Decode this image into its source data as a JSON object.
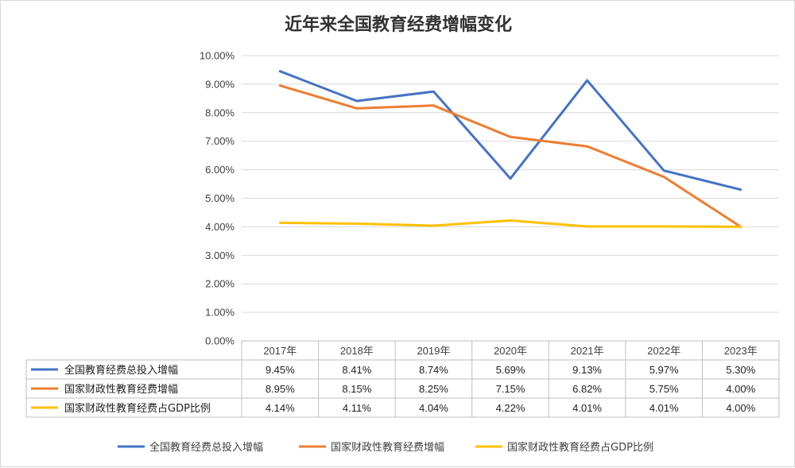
{
  "chart_data": {
    "type": "line",
    "title": "近年来全国教育经费增幅变化",
    "categories": [
      "2017年",
      "2018年",
      "2019年",
      "2020年",
      "2021年",
      "2022年",
      "2023年"
    ],
    "ylim": [
      0,
      10
    ],
    "y_ticks": [
      "0.00%",
      "1.00%",
      "2.00%",
      "3.00%",
      "4.00%",
      "5.00%",
      "6.00%",
      "7.00%",
      "8.00%",
      "9.00%",
      "10.00%"
    ],
    "grid": true,
    "legend_position": "bottom",
    "series": [
      {
        "name": "全国教育经费总投入增幅",
        "color": "#4472C4",
        "values": [
          9.45,
          8.41,
          8.74,
          5.69,
          9.13,
          5.97,
          5.3
        ],
        "labels": [
          "9.45%",
          "8.41%",
          "8.74%",
          "5.69%",
          "9.13%",
          "5.97%",
          "5.30%"
        ]
      },
      {
        "name": "国家财政性教育经费增幅",
        "color": "#ED7D31",
        "values": [
          8.95,
          8.15,
          8.25,
          7.15,
          6.82,
          5.75,
          4.0
        ],
        "labels": [
          "8.95%",
          "8.15%",
          "8.25%",
          "7.15%",
          "6.82%",
          "5.75%",
          "4.00%"
        ]
      },
      {
        "name": "国家财政性教育经费占GDP比例",
        "color": "#FFC000",
        "values": [
          4.14,
          4.11,
          4.04,
          4.22,
          4.01,
          4.01,
          4.0
        ],
        "labels": [
          "4.14%",
          "4.11%",
          "4.04%",
          "4.22%",
          "4.01%",
          "4.01%",
          "4.00%"
        ]
      }
    ]
  }
}
